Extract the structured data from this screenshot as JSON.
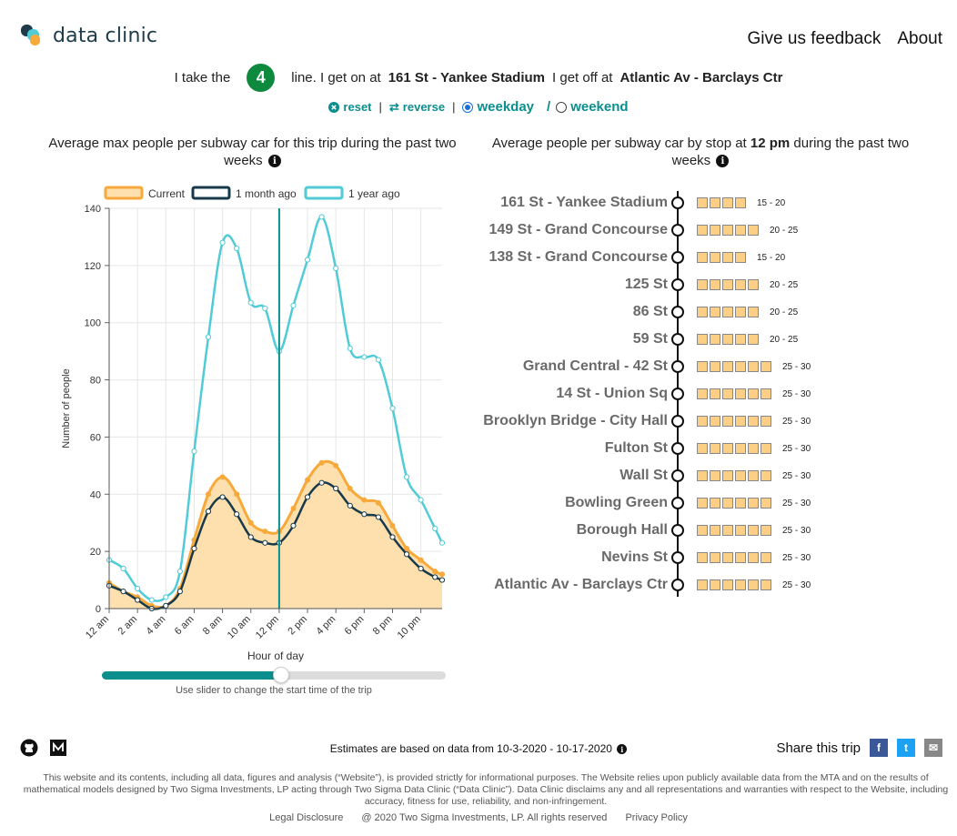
{
  "header": {
    "logo_text": "data clinic",
    "nav": [
      "Give us feedback",
      "About"
    ]
  },
  "trip": {
    "prefix": "I take the",
    "route": "4",
    "route_color": "#0e8a3e",
    "line_text": "line. I get on at",
    "from_station": "161 St - Yankee Stadium",
    "off_text": "I get off at",
    "to_station": "Atlantic Av - Barclays Ctr"
  },
  "controls": {
    "reset": "reset",
    "reverse": "reverse",
    "weekday": "weekday",
    "weekend": "weekend",
    "selected": "weekday",
    "slash": "/"
  },
  "left_panel": {
    "title": "Average max people per subway car for this trip during the past two weeks",
    "slider_help": "Use slider to change the start time of the trip",
    "slider_value_hour": 12
  },
  "right_panel": {
    "title_pre": "Average people per subway car by stop at",
    "title_time": "12 pm",
    "title_post": "during the past two weeks"
  },
  "chart_data": {
    "type": "line",
    "xlabel": "Hour of day",
    "ylabel": "Number of people",
    "ylim": [
      0,
      140
    ],
    "yticks": [
      0,
      20,
      40,
      60,
      80,
      100,
      120,
      140
    ],
    "xlim": [
      0,
      23.5
    ],
    "xticks": [
      {
        "x": 0,
        "label": "12 am"
      },
      {
        "x": 2,
        "label": "2 am"
      },
      {
        "x": 4,
        "label": "4 am"
      },
      {
        "x": 6,
        "label": "6 am"
      },
      {
        "x": 8,
        "label": "8 am"
      },
      {
        "x": 10,
        "label": "10 am"
      },
      {
        "x": 12,
        "label": "12 pm"
      },
      {
        "x": 14,
        "label": "2 pm"
      },
      {
        "x": 16,
        "label": "4 pm"
      },
      {
        "x": 18,
        "label": "6 pm"
      },
      {
        "x": 20,
        "label": "8 pm"
      },
      {
        "x": 22,
        "label": "10 pm"
      }
    ],
    "selected_x": 12,
    "grid": true,
    "legend_position": "top",
    "x": [
      0,
      1,
      2,
      3,
      4,
      5,
      6,
      7,
      8,
      9,
      10,
      11,
      12,
      13,
      14,
      15,
      16,
      17,
      18,
      19,
      20,
      21,
      22,
      23,
      23.5
    ],
    "series": [
      {
        "name": "Current",
        "color": "#f7a93b",
        "fill": "#fde0ad",
        "values": [
          9,
          6,
          4,
          1,
          1,
          7,
          24,
          40,
          46,
          40,
          30,
          27,
          27,
          35,
          45,
          51,
          50,
          42,
          38,
          37,
          29,
          21,
          17,
          13,
          12
        ]
      },
      {
        "name": "1 month ago",
        "color": "#17394a",
        "fill": null,
        "values": [
          8,
          6,
          3,
          0,
          1,
          6,
          21,
          34,
          39,
          33,
          25,
          23,
          23,
          29,
          39,
          44,
          42,
          36,
          33,
          32,
          25,
          19,
          14,
          11,
          10
        ]
      },
      {
        "name": "1 year ago",
        "color": "#51cbd6",
        "fill": null,
        "values": [
          17,
          14,
          7,
          3,
          4,
          13,
          55,
          95,
          128,
          126,
          107,
          105,
          90,
          106,
          122,
          137,
          119,
          91,
          88,
          87,
          70,
          46,
          38,
          28,
          23
        ]
      }
    ]
  },
  "stops": [
    {
      "name": "161 St - Yankee Stadium",
      "squares": 4,
      "range": "15 - 20"
    },
    {
      "name": "149 St - Grand Concourse",
      "squares": 5,
      "range": "20 - 25"
    },
    {
      "name": "138 St - Grand Concourse",
      "squares": 4,
      "range": "15 - 20"
    },
    {
      "name": "125 St",
      "squares": 5,
      "range": "20 - 25"
    },
    {
      "name": "86 St",
      "squares": 5,
      "range": "20 - 25"
    },
    {
      "name": "59 St",
      "squares": 5,
      "range": "20 - 25"
    },
    {
      "name": "Grand Central - 42 St",
      "squares": 6,
      "range": "25 - 30"
    },
    {
      "name": "14 St - Union Sq",
      "squares": 6,
      "range": "25 - 30"
    },
    {
      "name": "Brooklyn Bridge - City Hall",
      "squares": 6,
      "range": "25 - 30"
    },
    {
      "name": "Fulton St",
      "squares": 6,
      "range": "25 - 30"
    },
    {
      "name": "Wall St",
      "squares": 6,
      "range": "25 - 30"
    },
    {
      "name": "Bowling Green",
      "squares": 6,
      "range": "25 - 30"
    },
    {
      "name": "Borough Hall",
      "squares": 6,
      "range": "25 - 30"
    },
    {
      "name": "Nevins St",
      "squares": 6,
      "range": "25 - 30"
    },
    {
      "name": "Atlantic Av - Barclays Ctr",
      "squares": 6,
      "range": "25 - 30"
    }
  ],
  "footer": {
    "estimates": "Estimates are based on data from 10-3-2020 - 10-17-2020",
    "share_label": "Share this trip",
    "share_buttons": [
      {
        "icon": "facebook-icon",
        "glyph": "f",
        "color": "#3b5998"
      },
      {
        "icon": "twitter-icon",
        "glyph": "t",
        "color": "#1da1f2"
      },
      {
        "icon": "email-icon",
        "glyph": "✉",
        "color": "#888888"
      }
    ],
    "disclaimer": "This website and its contents, including all data, figures and analysis (“Website”), is provided strictly for informational purposes. The Website relies upon publicly available data from the MTA and on the results of mathematical models designed by Two Sigma Investments, LP acting through Two Sigma Data Clinic (“Data Clinic”). Data Clinic disclaims any and all representations and warranties with respect to the Website, including accuracy, fitness for use, reliability, and non-infringement.",
    "legal": [
      "Legal Disclosure",
      "@ 2020 Two Sigma Investments, LP. All rights reserved",
      "Privacy Policy"
    ]
  }
}
